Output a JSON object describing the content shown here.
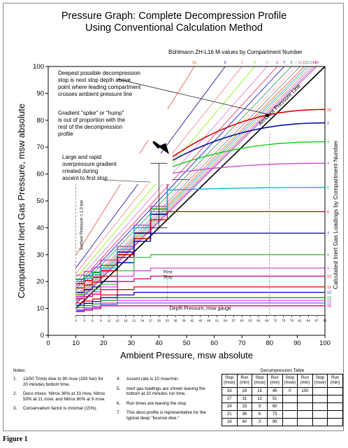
{
  "figure": {
    "title_line1": "Pressure Graph:  Complete Decompression Profile",
    "title_line2": "Using Conventional Calculation Method",
    "caption": "Figure 1"
  },
  "chart_data": {
    "type": "line",
    "title": "Pressure Graph:  Complete Decompression Profile Using Conventional Calculation Method",
    "xlabel": "Ambient Pressure, msw absolute",
    "ylabel": "Compartment Inert Gas Pressure, msw absolute",
    "right_label": "Calculated Inert Gas Loadings by Compartment Number",
    "xlim": [
      0,
      100
    ],
    "ylim": [
      0,
      100
    ],
    "x_ticks": [
      0,
      10,
      20,
      30,
      40,
      50,
      60,
      70,
      80,
      90,
      100
    ],
    "y_ticks": [
      0,
      10,
      20,
      30,
      40,
      50,
      60,
      70,
      80,
      90,
      100
    ],
    "grid": false,
    "mvalues_label": "Bühlmann ZH-L16 M-values by Compartment Number",
    "mvalue_lines": [
      {
        "name": "1b",
        "color": "#e74c3c",
        "a": 13.4,
        "b": 0.61
      },
      {
        "name": "2",
        "color": "#00008b",
        "a": 11.2,
        "b": 0.72
      },
      {
        "name": "3",
        "color": "#f08080",
        "a": 10.2,
        "b": 0.78
      },
      {
        "name": "4",
        "color": "#7cfc00",
        "a": 9.0,
        "b": 0.82
      },
      {
        "name": "5",
        "color": "#da70d6",
        "a": 8.0,
        "b": 0.86
      },
      {
        "name": "6",
        "color": "#e91e63",
        "a": 7.0,
        "b": 0.89
      },
      {
        "name": "7",
        "color": "#0000cd",
        "a": 6.3,
        "b": 0.91
      },
      {
        "name": "8",
        "color": "#2e8b57",
        "a": 5.5,
        "b": 0.93
      },
      {
        "name": "9",
        "color": "#ffb6c1",
        "a": 4.8,
        "b": 0.94
      },
      {
        "name": "10",
        "color": "#808080",
        "a": 4.2,
        "b": 0.95
      },
      {
        "name": "11",
        "color": "#ff4500",
        "a": 3.6,
        "b": 0.96
      },
      {
        "name": "12",
        "color": "#1e90ff",
        "a": 3.0,
        "b": 0.965
      },
      {
        "name": "13",
        "color": "#9acd32",
        "a": 2.6,
        "b": 0.97
      },
      {
        "name": "14",
        "color": "#ff69b4",
        "a": 2.2,
        "b": 0.975
      },
      {
        "name": "15",
        "color": "#6a5acd",
        "a": 1.8,
        "b": 0.98
      },
      {
        "name": "16",
        "color": "#c71585",
        "a": 1.5,
        "b": 0.985
      }
    ],
    "ambient_line": {
      "label": "Ambient Pressure Line",
      "points": [
        [
          10,
          10
        ],
        [
          100,
          100
        ]
      ]
    },
    "surface_pressure": {
      "label": "Surface Pressure = 1.0 bar",
      "x": 10
    },
    "first_stop": {
      "label_line1": "First",
      "label_line2": "Stop",
      "x": 43
    },
    "bottom_marker_x": 80,
    "depth_scale": {
      "label": "Depth Pressure, msw gauge",
      "ticks": [
        0,
        3,
        6,
        9,
        12,
        15,
        18,
        21,
        24,
        27,
        30,
        33,
        36,
        39,
        42,
        45,
        48,
        51,
        54,
        57,
        60,
        63,
        66,
        69,
        72,
        75,
        78,
        81,
        84,
        87,
        90
      ]
    },
    "series": [
      {
        "name": "1b",
        "color": "#e00000",
        "loading_at_start": 84,
        "ascent_end": 65,
        "stop_values": [
          47,
          38,
          30,
          24
        ],
        "start_color_y": 84
      },
      {
        "name": "2",
        "color": "#0010a0",
        "loading_at_start": 79,
        "ascent_end": 64,
        "stop_values": [
          45,
          38,
          31,
          26
        ],
        "start_color_y": 79
      },
      {
        "name": "3",
        "color": "#00cc00",
        "loading_at_start": 72,
        "ascent_end": 62,
        "stop_values": [
          47,
          40,
          33,
          26
        ]
      },
      {
        "name": "4",
        "color": "#cc44cc",
        "loading_at_start": 64,
        "ascent_end": 60,
        "stop_values": [
          48,
          41,
          33,
          28
        ]
      },
      {
        "name": "5",
        "color": "#00b0e0",
        "loading_at_start": 55,
        "ascent_end": 54,
        "stop_values": [
          46,
          40,
          32,
          25
        ]
      },
      {
        "name": "6",
        "color": "#d00000",
        "loading_at_start": 46,
        "ascent_end": 46,
        "stop_values": [
          43,
          36,
          29,
          22
        ]
      },
      {
        "name": "7",
        "color": "#0000a0",
        "loading_at_start": 38,
        "ascent_end": 38,
        "stop_values": [
          38,
          35,
          27,
          20
        ]
      },
      {
        "name": "8",
        "color": "#40c040",
        "loading_at_start": 30,
        "ascent_end": 30,
        "stop_values": [
          30,
          29,
          24,
          19
        ]
      },
      {
        "name": "9",
        "color": "#e040e0",
        "loading_at_start": 25,
        "ascent_end": 25,
        "stop_values": [
          25,
          24,
          22,
          18
        ]
      },
      {
        "name": "10",
        "color": "#e00060",
        "loading_at_start": 22,
        "ascent_end": 22,
        "stop_values": [
          22,
          21,
          20,
          17
        ]
      },
      {
        "name": "11",
        "color": "#e00000",
        "loading_at_start": 18,
        "ascent_end": 18,
        "stop_values": [
          18,
          18,
          17,
          15
        ]
      },
      {
        "name": "12",
        "color": "#0000c0",
        "loading_at_start": 16,
        "ascent_end": 16,
        "stop_values": [
          16,
          16,
          15,
          14
        ]
      },
      {
        "name": "13",
        "color": "#00a000",
        "loading_at_start": 14,
        "ascent_end": 14,
        "stop_values": [
          14,
          14,
          14,
          13
        ]
      },
      {
        "name": "14",
        "color": "#e040e0",
        "loading_at_start": 13,
        "ascent_end": 13,
        "stop_values": [
          13,
          13,
          13,
          12
        ]
      },
      {
        "name": "15",
        "color": "#6060ff",
        "loading_at_start": 12,
        "ascent_end": 12,
        "stop_values": [
          12,
          12,
          12,
          11.5
        ]
      },
      {
        "name": "16",
        "color": "#e00060",
        "loading_at_start": 11,
        "ascent_end": 11,
        "stop_values": [
          11,
          11,
          11,
          11
        ]
      }
    ],
    "annotations": [
      {
        "id": "deepest",
        "lines": [
          "Deepest possible decompression",
          "stop is next stop depth above",
          "point where leading compartment",
          "crosses ambient pressure line"
        ]
      },
      {
        "id": "gradient",
        "lines": [
          "Gradient \"spike\" or \"hump\"",
          "is out of proportion with the",
          "rest of the decompression",
          "profile"
        ]
      },
      {
        "id": "overpressure",
        "lines": [
          "Large and rapid",
          "overpressure gradient",
          "created during",
          "ascent to first stop"
        ]
      }
    ]
  },
  "notes": {
    "heading": "Notes:",
    "left": [
      {
        "num": "1.",
        "text": "13/50 Trimix dive to 90 msw (293 fsw) for 20 minutes bottom time."
      },
      {
        "num": "2.",
        "text": "Deco mixes:  Nitrox 36% at 33 msw, Nitrox 50% at 21 msw, and Nitrox 80% at 9 msw."
      },
      {
        "num": "3.",
        "text": "Conservatism factor is minimal (15%)."
      }
    ],
    "right": [
      {
        "num": "4.",
        "text": "Ascent rate is 10 msw/min."
      },
      {
        "num": "5.",
        "text": "Inert gas loadings are shown leaving the bottom at 20 minutes run time."
      },
      {
        "num": "6.",
        "text": "Run times are leaving the stop."
      },
      {
        "num": "7.",
        "text": "This deco profile is representative for the typical deep \"bounce dive.\""
      }
    ]
  },
  "deco_table": {
    "title": "Decompression Table",
    "headers": [
      "Stop (msw)",
      "Run (min)",
      "Stop (msw)",
      "Run (min)",
      "Stop (msw)",
      "Run (min)",
      "Stop (msw)",
      "Run (min)"
    ],
    "rows": [
      [
        "33",
        "29",
        "15",
        "45",
        "0",
        "100",
        "",
        ""
      ],
      [
        "27",
        "31",
        "12",
        "51",
        "",
        "",
        "",
        ""
      ],
      [
        "24",
        "33",
        "9",
        "60",
        "",
        "",
        "",
        ""
      ],
      [
        "21",
        "36",
        "6",
        "73",
        "",
        "",
        "",
        ""
      ],
      [
        "18",
        "40",
        "3",
        "99",
        "",
        "",
        "",
        ""
      ]
    ]
  }
}
